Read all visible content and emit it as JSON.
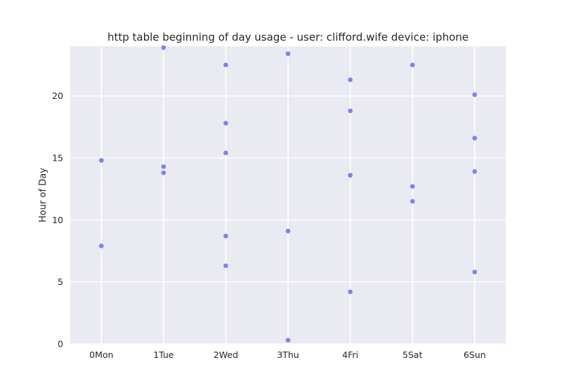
{
  "chart_data": {
    "type": "scatter",
    "title": "http table beginning of day usage -  user: clifford.wife device: iphone",
    "xlabel": "",
    "ylabel": "Hour of Day",
    "categories": [
      "0Mon",
      "1Tue",
      "2Wed",
      "3Thu",
      "4Fri",
      "5Sat",
      "6Sun"
    ],
    "ylim": [
      0,
      24
    ],
    "yticks": [
      0,
      5,
      10,
      15,
      20
    ],
    "grid": true,
    "style": {
      "background": "#eaeaf2",
      "grid_color": "#ffffff",
      "point_color": "#6b6cf0"
    },
    "points": [
      {
        "x": "0Mon",
        "y": 14.8
      },
      {
        "x": "0Mon",
        "y": 7.9
      },
      {
        "x": "1Tue",
        "y": 23.9
      },
      {
        "x": "1Tue",
        "y": 14.3
      },
      {
        "x": "1Tue",
        "y": 13.8
      },
      {
        "x": "2Wed",
        "y": 22.5
      },
      {
        "x": "2Wed",
        "y": 17.8
      },
      {
        "x": "2Wed",
        "y": 15.4
      },
      {
        "x": "2Wed",
        "y": 8.7
      },
      {
        "x": "2Wed",
        "y": 6.3
      },
      {
        "x": "3Thu",
        "y": 23.4
      },
      {
        "x": "3Thu",
        "y": 9.1
      },
      {
        "x": "3Thu",
        "y": 0.3
      },
      {
        "x": "4Fri",
        "y": 21.3
      },
      {
        "x": "4Fri",
        "y": 18.8
      },
      {
        "x": "4Fri",
        "y": 13.6
      },
      {
        "x": "4Fri",
        "y": 4.2
      },
      {
        "x": "5Sat",
        "y": 22.5
      },
      {
        "x": "5Sat",
        "y": 12.7
      },
      {
        "x": "5Sat",
        "y": 11.5
      },
      {
        "x": "6Sun",
        "y": 20.1
      },
      {
        "x": "6Sun",
        "y": 16.6
      },
      {
        "x": "6Sun",
        "y": 13.9
      },
      {
        "x": "6Sun",
        "y": 5.8
      }
    ]
  }
}
